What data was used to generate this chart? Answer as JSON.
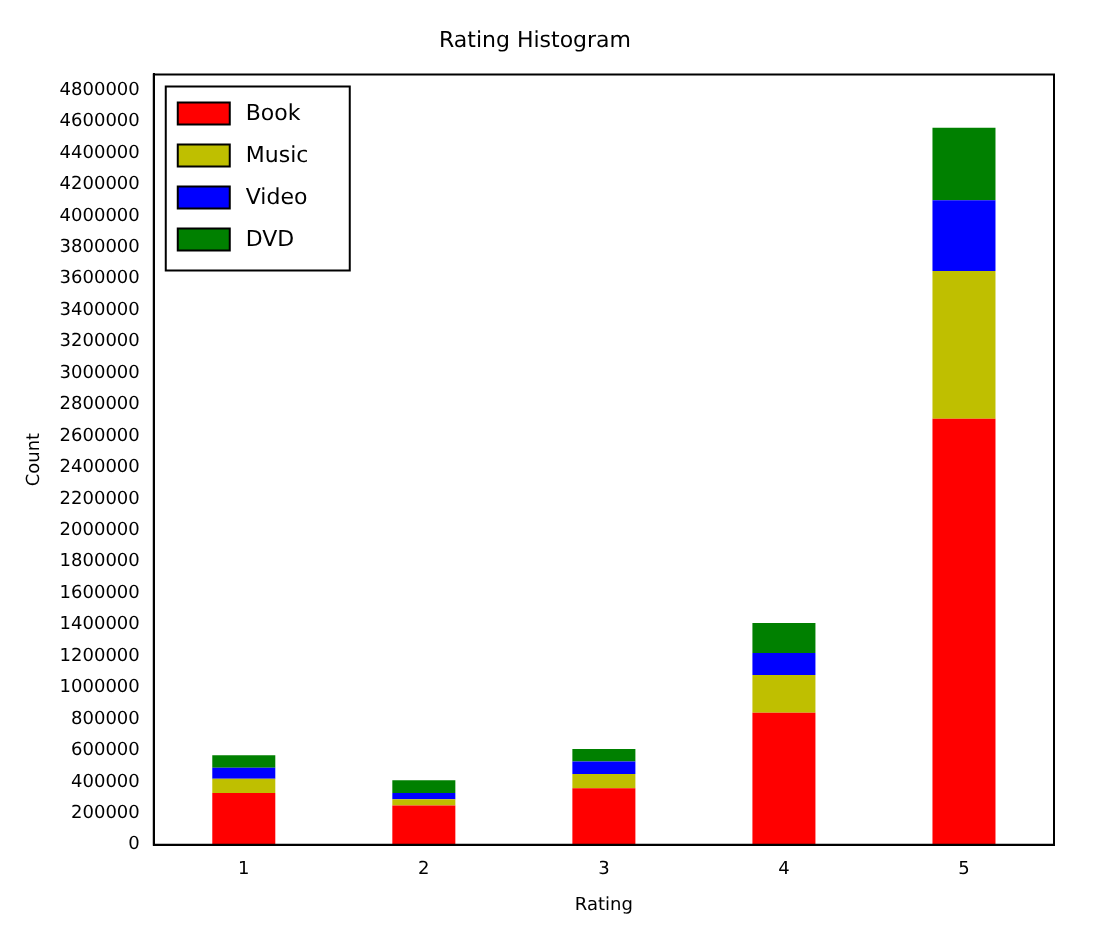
{
  "chart_data": {
    "type": "bar",
    "title": "Rating Histogram",
    "xlabel": "Rating",
    "ylabel": "Count",
    "categories": [
      "1",
      "2",
      "3",
      "4",
      "5"
    ],
    "stacked": true,
    "legend": "top left",
    "grid": false,
    "ylim": [
      0,
      4900000
    ],
    "yticks": [
      0,
      200000,
      400000,
      600000,
      800000,
      1000000,
      1200000,
      1400000,
      1600000,
      1800000,
      2000000,
      2200000,
      2400000,
      2600000,
      2800000,
      3000000,
      3200000,
      3400000,
      3600000,
      3800000,
      4000000,
      4200000,
      4400000,
      4600000,
      4800000
    ],
    "series": [
      {
        "name": "Book",
        "color": "#ff0000",
        "values": [
          330000,
          250000,
          360000,
          840000,
          2710000
        ]
      },
      {
        "name": "Music",
        "color": "#bfbf00",
        "values": [
          90000,
          40000,
          90000,
          240000,
          940000
        ]
      },
      {
        "name": "Video",
        "color": "#0000ff",
        "values": [
          70000,
          40000,
          80000,
          140000,
          450000
        ]
      },
      {
        "name": "DVD",
        "color": "#008000",
        "values": [
          80000,
          80000,
          80000,
          190000,
          460000
        ]
      }
    ]
  }
}
